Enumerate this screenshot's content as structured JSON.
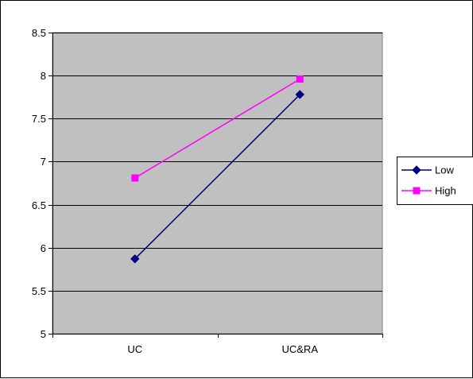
{
  "chart_data": {
    "type": "line",
    "title": "",
    "xlabel": "",
    "ylabel": "",
    "categories": [
      "UC",
      "UC&RA"
    ],
    "ylim": [
      5,
      8.5
    ],
    "yticks": [
      "5",
      "5.5",
      "6",
      "6.5",
      "7",
      "7.5",
      "8",
      "8.5"
    ],
    "grid": "horizontal",
    "legend_position": "right",
    "plot_background": "#c0c0c0",
    "series": [
      {
        "name": "Low",
        "values": [
          5.87,
          7.78
        ],
        "color": "#000080",
        "marker": "diamond"
      },
      {
        "name": "High",
        "values": [
          6.81,
          7.96
        ],
        "color": "#ff00ff",
        "marker": "square"
      }
    ]
  }
}
